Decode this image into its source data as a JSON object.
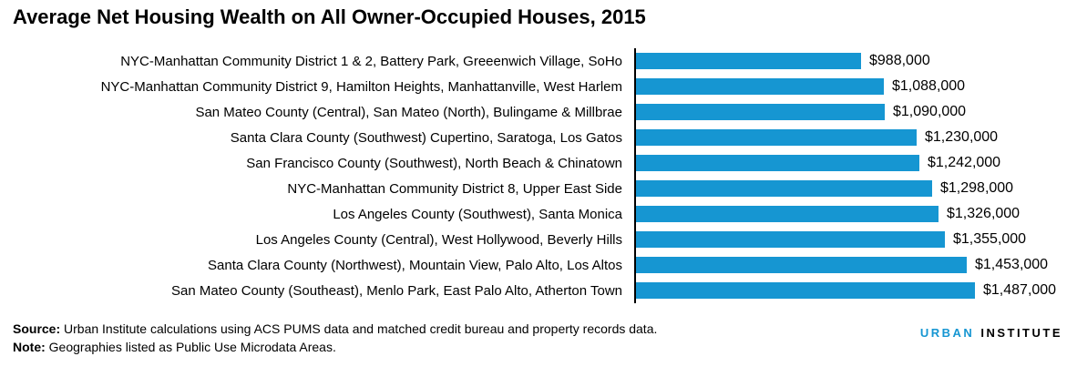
{
  "title": "Average Net Housing Wealth on All Owner-Occupied Houses, 2015",
  "chart_data": {
    "type": "bar",
    "orientation": "horizontal",
    "title": "Average Net Housing Wealth on All Owner-Occupied Houses, 2015",
    "categories": [
      "NYC-Manhattan Community District 1 & 2, Battery Park, Greeenwich Village, SoHo",
      "NYC-Manhattan Community District 9, Hamilton Heights, Manhattanville, West Harlem",
      "San Mateo County (Central), San Mateo (North), Bulingame & Millbrae",
      "Santa Clara County (Southwest) Cupertino, Saratoga, Los Gatos",
      "San Francisco County (Southwest), North Beach & Chinatown",
      "NYC-Manhattan Community District 8, Upper East Side",
      "Los Angeles County (Southwest), Santa Monica",
      "Los Angeles County (Central), West Hollywood, Beverly Hills",
      "Santa Clara County (Northwest), Mountain View, Palo Alto, Los Altos",
      "San Mateo County (Southeast), Menlo Park, East Palo Alto, Atherton Town"
    ],
    "values": [
      988000,
      1088000,
      1090000,
      1230000,
      1242000,
      1298000,
      1326000,
      1355000,
      1453000,
      1487000
    ],
    "value_labels": [
      "$988,000",
      "$1,088,000",
      "$1,090,000",
      "$1,230,000",
      "$1,242,000",
      "$1,298,000",
      "$1,326,000",
      "$1,355,000",
      "$1,453,000",
      "$1,487,000"
    ],
    "xlabel": "",
    "ylabel": "",
    "xlim": [
      0,
      1600000
    ],
    "grid": false,
    "legend": false,
    "bar_color": "#1696d2",
    "axis_color": "#000000"
  },
  "footer": {
    "source_label": "Source:",
    "source_text": " Urban Institute calculations using ACS PUMS data and matched credit bureau and property records data.",
    "note_label": "Note:",
    "note_text": " Geographies listed as Public Use Microdata Areas."
  },
  "logo": {
    "part1": "URBAN",
    "part2": "INSTITUTE",
    "part1_color": "#1696d2",
    "part2_color": "#000000"
  }
}
